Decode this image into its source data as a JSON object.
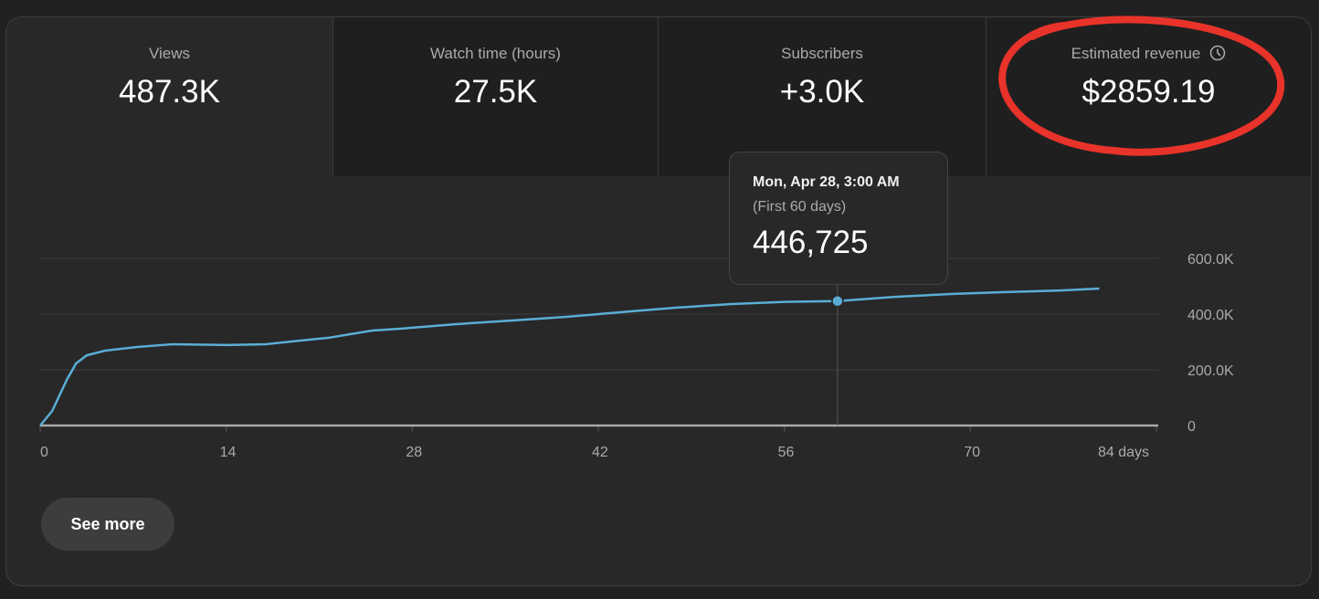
{
  "metric_tabs": [
    {
      "label": "Views",
      "value": "487.3K",
      "selected": true
    },
    {
      "label": "Watch time (hours)",
      "value": "27.5K",
      "selected": false
    },
    {
      "label": "Subscribers",
      "value": "+3.0K",
      "selected": false
    },
    {
      "label": "Estimated revenue",
      "value": "$2859.19",
      "selected": false,
      "icon": "clock-icon"
    }
  ],
  "tooltip": {
    "date": "Mon, Apr 28, 3:00 AM",
    "subtitle": "(First 60 days)",
    "value": "446,725"
  },
  "see_more_label": "See more",
  "annotation_color": "#e8332a",
  "chart_data": {
    "type": "line",
    "line_color": "#5aaed6",
    "x_ticks": [
      "0",
      "14",
      "28",
      "42",
      "56",
      "70",
      "84 days"
    ],
    "x_tick_values": [
      0,
      14,
      28,
      42,
      56,
      70,
      84
    ],
    "y_ticks": [
      "0",
      "200.0K",
      "400.0K",
      "600.0K"
    ],
    "y_tick_values": [
      0,
      200000,
      400000,
      600000
    ],
    "xlim": [
      0,
      84
    ],
    "ylim": [
      0,
      600000
    ],
    "grid": true,
    "highlight": {
      "x": 60,
      "y": 446725
    },
    "x": [
      0,
      0.9,
      2,
      2.7,
      3.5,
      4.9,
      7.3,
      10,
      14.2,
      17,
      19,
      21.7,
      25,
      27.2,
      31.3,
      35.5,
      39.6,
      43.7,
      47.8,
      52,
      56,
      60,
      64.3,
      68.5,
      72.6,
      76.8,
      79.7
    ],
    "y": [
      0,
      52000,
      164000,
      223000,
      252000,
      269000,
      282000,
      292000,
      289000,
      292000,
      302000,
      315000,
      341000,
      348000,
      364000,
      377000,
      390000,
      407000,
      423000,
      436000,
      444000,
      446725,
      462000,
      472000,
      479000,
      485000,
      492000
    ]
  }
}
